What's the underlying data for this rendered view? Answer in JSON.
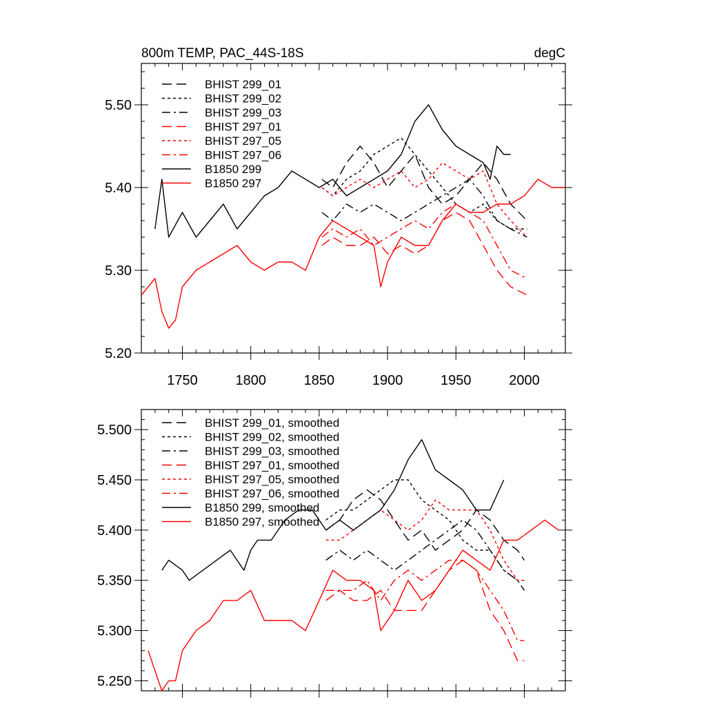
{
  "style": {
    "black": "#000000",
    "red": "#ff0000"
  },
  "chart_data": [
    {
      "type": "line",
      "title": "800m TEMP, PAC_44S-18S",
      "units": "degC",
      "xlim": [
        1720,
        2030
      ],
      "ylim": [
        5.2,
        5.55
      ],
      "x_ticks": [
        1750,
        1800,
        1850,
        1900,
        1950,
        2000
      ],
      "x_tick_labels": [
        "1750",
        "1800",
        "1850",
        "1900",
        "1950",
        "2000"
      ],
      "y_ticks": [
        5.2,
        5.3,
        5.4,
        5.5
      ],
      "y_tick_labels": [
        "5.20",
        "5.30",
        "5.40",
        "5.50"
      ],
      "series": [
        {
          "name": "BHIST 299_01",
          "color": "#000000",
          "dash": "dash",
          "x": [
            1852,
            1860,
            1870,
            1880,
            1890,
            1900,
            1910,
            1920,
            1930,
            1940,
            1950,
            1960,
            1970,
            1980,
            1990,
            2002
          ],
          "y": [
            5.41,
            5.4,
            5.43,
            5.45,
            5.43,
            5.4,
            5.42,
            5.44,
            5.4,
            5.38,
            5.39,
            5.41,
            5.43,
            5.41,
            5.38,
            5.36
          ]
        },
        {
          "name": "BHIST 299_02",
          "color": "#000000",
          "dash": "dot",
          "x": [
            1852,
            1860,
            1870,
            1880,
            1890,
            1900,
            1910,
            1920,
            1930,
            1940,
            1950,
            1960,
            1970,
            1980,
            1990,
            2002
          ],
          "y": [
            5.4,
            5.39,
            5.41,
            5.42,
            5.44,
            5.45,
            5.46,
            5.44,
            5.42,
            5.4,
            5.38,
            5.37,
            5.38,
            5.36,
            5.35,
            5.35
          ]
        },
        {
          "name": "BHIST 299_03",
          "color": "#000000",
          "dash": "dashdot",
          "x": [
            1852,
            1860,
            1870,
            1880,
            1890,
            1900,
            1910,
            1920,
            1930,
            1940,
            1950,
            1960,
            1970,
            1980,
            1990,
            2002
          ],
          "y": [
            5.37,
            5.36,
            5.38,
            5.37,
            5.38,
            5.37,
            5.36,
            5.37,
            5.38,
            5.39,
            5.4,
            5.41,
            5.39,
            5.36,
            5.35,
            5.34
          ]
        },
        {
          "name": "BHIST 297_01",
          "color": "#ff0000",
          "dash": "dash",
          "x": [
            1852,
            1860,
            1870,
            1880,
            1890,
            1900,
            1910,
            1920,
            1930,
            1940,
            1950,
            1960,
            1970,
            1980,
            1990,
            2002
          ],
          "y": [
            5.33,
            5.34,
            5.33,
            5.33,
            5.34,
            5.32,
            5.33,
            5.32,
            5.33,
            5.36,
            5.37,
            5.36,
            5.33,
            5.3,
            5.28,
            5.27
          ]
        },
        {
          "name": "BHIST 297_05",
          "color": "#ff0000",
          "dash": "dot",
          "x": [
            1852,
            1860,
            1870,
            1880,
            1890,
            1900,
            1910,
            1920,
            1930,
            1940,
            1950,
            1960,
            1970,
            1980,
            1990,
            2002
          ],
          "y": [
            5.4,
            5.39,
            5.4,
            5.41,
            5.4,
            5.41,
            5.42,
            5.4,
            5.41,
            5.43,
            5.42,
            5.41,
            5.42,
            5.38,
            5.36,
            5.34
          ]
        },
        {
          "name": "BHIST 297_06",
          "color": "#ff0000",
          "dash": "dashdot",
          "x": [
            1852,
            1860,
            1870,
            1880,
            1890,
            1900,
            1910,
            1920,
            1930,
            1940,
            1950,
            1960,
            1970,
            1980,
            1990,
            2002
          ],
          "y": [
            5.34,
            5.35,
            5.34,
            5.35,
            5.33,
            5.34,
            5.35,
            5.36,
            5.35,
            5.37,
            5.38,
            5.37,
            5.36,
            5.33,
            5.3,
            5.29
          ]
        },
        {
          "name": "B1850 299",
          "color": "#000000",
          "dash": "solid",
          "x": [
            1730,
            1735,
            1740,
            1750,
            1760,
            1770,
            1780,
            1790,
            1800,
            1810,
            1820,
            1830,
            1840,
            1850,
            1860,
            1870,
            1880,
            1890,
            1900,
            1910,
            1920,
            1930,
            1940,
            1950,
            1960,
            1970,
            1975,
            1980,
            1985,
            1990
          ],
          "y": [
            5.35,
            5.41,
            5.34,
            5.37,
            5.34,
            5.36,
            5.38,
            5.35,
            5.37,
            5.39,
            5.4,
            5.42,
            5.41,
            5.4,
            5.41,
            5.39,
            5.4,
            5.41,
            5.42,
            5.44,
            5.48,
            5.5,
            5.47,
            5.45,
            5.44,
            5.43,
            5.41,
            5.45,
            5.44,
            5.44
          ]
        },
        {
          "name": "B1850 297",
          "color": "#ff0000",
          "dash": "solid",
          "x": [
            1720,
            1730,
            1735,
            1740,
            1745,
            1750,
            1760,
            1770,
            1780,
            1790,
            1800,
            1810,
            1820,
            1830,
            1840,
            1850,
            1860,
            1870,
            1880,
            1890,
            1895,
            1900,
            1910,
            1920,
            1930,
            1940,
            1950,
            1960,
            1970,
            1980,
            1990,
            2000,
            2010,
            2020,
            2030
          ],
          "y": [
            5.27,
            5.29,
            5.25,
            5.23,
            5.24,
            5.28,
            5.3,
            5.31,
            5.32,
            5.33,
            5.31,
            5.3,
            5.31,
            5.31,
            5.3,
            5.34,
            5.36,
            5.35,
            5.34,
            5.33,
            5.28,
            5.31,
            5.34,
            5.33,
            5.33,
            5.36,
            5.38,
            5.37,
            5.37,
            5.38,
            5.38,
            5.39,
            5.41,
            5.4,
            5.4
          ]
        }
      ],
      "legend": [
        "BHIST 299_01",
        "BHIST 299_02",
        "BHIST 299_03",
        "BHIST 297_01",
        "BHIST 297_05",
        "BHIST 297_06",
        "B1850 299",
        "B1850 297"
      ]
    },
    {
      "type": "line",
      "title": "",
      "xlim": [
        1720,
        2030
      ],
      "ylim": [
        5.24,
        5.52
      ],
      "y_ticks": [
        5.25,
        5.3,
        5.35,
        5.4,
        5.45,
        5.5
      ],
      "y_tick_labels": [
        "5.250",
        "5.300",
        "5.350",
        "5.400",
        "5.450",
        "5.500"
      ],
      "series": [
        {
          "name": "BHIST 299_01, smoothed",
          "color": "#000000",
          "dash": "dash",
          "x": [
            1855,
            1865,
            1875,
            1885,
            1895,
            1905,
            1915,
            1925,
            1935,
            1945,
            1955,
            1965,
            1975,
            1985,
            1995,
            2000
          ],
          "y": [
            5.4,
            5.41,
            5.43,
            5.44,
            5.43,
            5.41,
            5.39,
            5.4,
            5.38,
            5.39,
            5.4,
            5.42,
            5.41,
            5.39,
            5.38,
            5.37
          ]
        },
        {
          "name": "BHIST 299_02, smoothed",
          "color": "#000000",
          "dash": "dot",
          "x": [
            1855,
            1865,
            1875,
            1885,
            1895,
            1905,
            1915,
            1925,
            1935,
            1945,
            1955,
            1965,
            1975,
            1985,
            1995,
            2000
          ],
          "y": [
            5.41,
            5.42,
            5.42,
            5.43,
            5.44,
            5.45,
            5.45,
            5.43,
            5.42,
            5.41,
            5.39,
            5.38,
            5.38,
            5.36,
            5.35,
            5.35
          ]
        },
        {
          "name": "BHIST 299_03, smoothed",
          "color": "#000000",
          "dash": "dashdot",
          "x": [
            1855,
            1865,
            1875,
            1885,
            1895,
            1905,
            1915,
            1925,
            1935,
            1945,
            1955,
            1965,
            1975,
            1985,
            1995,
            2000
          ],
          "y": [
            5.37,
            5.38,
            5.37,
            5.38,
            5.37,
            5.36,
            5.37,
            5.38,
            5.39,
            5.4,
            5.41,
            5.4,
            5.38,
            5.36,
            5.35,
            5.34
          ]
        },
        {
          "name": "BHIST 297_01, smoothed",
          "color": "#ff0000",
          "dash": "dash",
          "x": [
            1855,
            1865,
            1875,
            1885,
            1895,
            1905,
            1915,
            1925,
            1935,
            1945,
            1955,
            1965,
            1975,
            1985,
            1995,
            2000
          ],
          "y": [
            5.33,
            5.34,
            5.33,
            5.33,
            5.34,
            5.32,
            5.32,
            5.32,
            5.34,
            5.36,
            5.37,
            5.36,
            5.32,
            5.3,
            5.27,
            5.27
          ]
        },
        {
          "name": "BHIST 297_05, smoothed",
          "color": "#ff0000",
          "dash": "dot",
          "x": [
            1855,
            1865,
            1875,
            1885,
            1895,
            1905,
            1915,
            1925,
            1935,
            1945,
            1955,
            1965,
            1975,
            1985,
            1995,
            2000
          ],
          "y": [
            5.39,
            5.39,
            5.4,
            5.41,
            5.42,
            5.41,
            5.4,
            5.41,
            5.43,
            5.42,
            5.42,
            5.42,
            5.4,
            5.37,
            5.35,
            5.35
          ]
        },
        {
          "name": "BHIST 297_06, smoothed",
          "color": "#ff0000",
          "dash": "dashdot",
          "x": [
            1855,
            1865,
            1875,
            1885,
            1895,
            1905,
            1915,
            1925,
            1935,
            1945,
            1955,
            1965,
            1975,
            1985,
            1995,
            2000
          ],
          "y": [
            5.34,
            5.34,
            5.34,
            5.35,
            5.33,
            5.35,
            5.36,
            5.35,
            5.36,
            5.37,
            5.37,
            5.36,
            5.34,
            5.32,
            5.29,
            5.29
          ]
        },
        {
          "name": "B1850 299, smoothed",
          "color": "#000000",
          "dash": "solid",
          "x": [
            1735,
            1740,
            1750,
            1755,
            1765,
            1775,
            1785,
            1795,
            1800,
            1805,
            1815,
            1825,
            1835,
            1845,
            1855,
            1865,
            1875,
            1885,
            1895,
            1905,
            1915,
            1925,
            1935,
            1945,
            1955,
            1965,
            1975,
            1985
          ],
          "y": [
            5.36,
            5.37,
            5.36,
            5.35,
            5.36,
            5.37,
            5.38,
            5.36,
            5.38,
            5.39,
            5.39,
            5.41,
            5.42,
            5.42,
            5.4,
            5.41,
            5.4,
            5.41,
            5.42,
            5.44,
            5.47,
            5.49,
            5.46,
            5.45,
            5.44,
            5.42,
            5.42,
            5.45
          ]
        },
        {
          "name": "B1850 297, smoothed",
          "color": "#ff0000",
          "dash": "solid",
          "x": [
            1725,
            1730,
            1735,
            1740,
            1745,
            1750,
            1760,
            1770,
            1780,
            1790,
            1800,
            1810,
            1820,
            1830,
            1840,
            1850,
            1860,
            1870,
            1880,
            1890,
            1895,
            1905,
            1915,
            1925,
            1935,
            1945,
            1955,
            1965,
            1975,
            1985,
            1995,
            2005,
            2015,
            2025
          ],
          "y": [
            5.28,
            5.26,
            5.24,
            5.25,
            5.25,
            5.28,
            5.3,
            5.31,
            5.33,
            5.33,
            5.34,
            5.31,
            5.31,
            5.31,
            5.3,
            5.33,
            5.36,
            5.35,
            5.35,
            5.34,
            5.3,
            5.32,
            5.35,
            5.33,
            5.34,
            5.36,
            5.38,
            5.37,
            5.36,
            5.39,
            5.39,
            5.4,
            5.41,
            5.4
          ]
        }
      ],
      "legend": [
        "BHIST 299_01, smoothed",
        "BHIST 299_02, smoothed",
        "BHIST 299_03, smoothed",
        "BHIST 297_01, smoothed",
        "BHIST 297_05, smoothed",
        "BHIST 297_06, smoothed",
        "B1850 299, smoothed",
        "B1850 297, smoothed"
      ]
    }
  ]
}
